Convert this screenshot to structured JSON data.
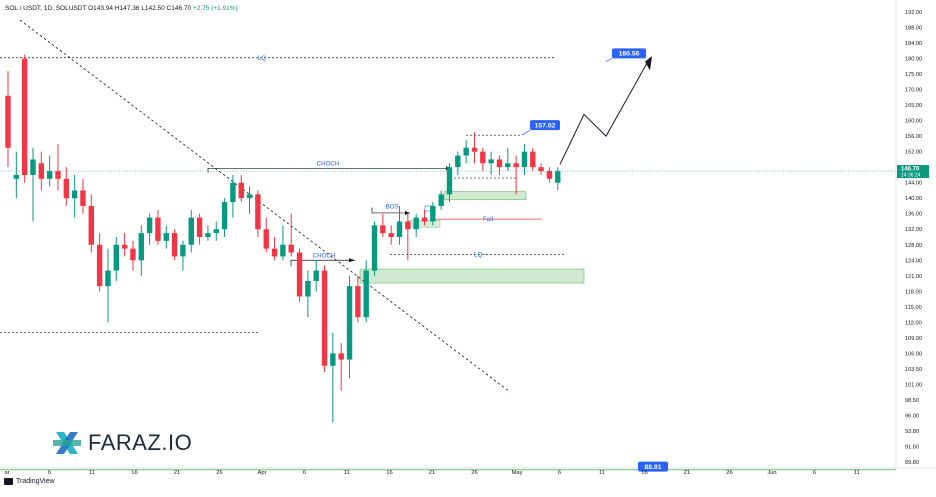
{
  "header": {
    "symbol": "SOL / USDT, 1D, SOLUSDT",
    "open": "O143.94",
    "high": "H147.36",
    "low": "L142.50",
    "close": "C146.70",
    "change": "+2.75 (+1.91%)"
  },
  "branding": {
    "logo_text": "FARAZ.IO",
    "tv_text": "TradingView"
  },
  "chart_data": {
    "type": "candlestick",
    "price_axis": {
      "ticks": [
        192.0,
        188.0,
        184.0,
        180.0,
        175.0,
        170.0,
        165.0,
        160.0,
        156.0,
        152.0,
        148.0,
        144.0,
        140.0,
        136.0,
        132.0,
        128.0,
        124.0,
        121.0,
        118.0,
        115.0,
        112.0,
        109.0,
        106.0,
        103.5,
        101.0,
        98.5,
        96.0,
        93.8,
        91.6,
        89.8
      ],
      "ylim": [
        88.5,
        194
      ]
    },
    "time_axis": {
      "labels": [
        "ar",
        "6",
        "11",
        "16",
        "21",
        "26",
        "Apr",
        "6",
        "11",
        "16",
        "21",
        "26",
        "May",
        "6",
        "11",
        "16",
        "21",
        "26",
        "Jun",
        "6",
        "11"
      ]
    },
    "current_price": {
      "label": "146.70",
      "countdown": "14:36:24",
      "color": "#089981"
    },
    "colors": {
      "up": "#089981",
      "down": "#f23645",
      "annotation": "#2962ff",
      "zone_fill": "#c8e6c9",
      "zone_stroke": "#4caf50"
    },
    "candles": [
      {
        "o": 168,
        "h": 176,
        "l": 148,
        "c": 153
      },
      {
        "o": 145,
        "h": 152,
        "l": 140,
        "c": 146
      },
      {
        "o": 180,
        "h": 181,
        "l": 144,
        "c": 146
      },
      {
        "o": 146,
        "h": 153,
        "l": 134,
        "c": 150
      },
      {
        "o": 149,
        "h": 152,
        "l": 142,
        "c": 145
      },
      {
        "o": 145,
        "h": 151,
        "l": 143,
        "c": 147
      },
      {
        "o": 147,
        "h": 154,
        "l": 142,
        "c": 145
      },
      {
        "o": 145,
        "h": 148,
        "l": 138,
        "c": 140
      },
      {
        "o": 140,
        "h": 146,
        "l": 135,
        "c": 142
      },
      {
        "o": 142,
        "h": 145,
        "l": 136,
        "c": 138
      },
      {
        "o": 138,
        "h": 141,
        "l": 126,
        "c": 128
      },
      {
        "o": 128,
        "h": 131,
        "l": 118,
        "c": 119
      },
      {
        "o": 119,
        "h": 127,
        "l": 112,
        "c": 122
      },
      {
        "o": 122,
        "h": 130,
        "l": 120,
        "c": 128
      },
      {
        "o": 128,
        "h": 131,
        "l": 125,
        "c": 127
      },
      {
        "o": 127,
        "h": 129,
        "l": 122,
        "c": 124
      },
      {
        "o": 124,
        "h": 133,
        "l": 121,
        "c": 131
      },
      {
        "o": 131,
        "h": 136,
        "l": 128,
        "c": 135
      },
      {
        "o": 135,
        "h": 137,
        "l": 128,
        "c": 129
      },
      {
        "o": 129,
        "h": 133,
        "l": 127,
        "c": 131
      },
      {
        "o": 131,
        "h": 132,
        "l": 124,
        "c": 125
      },
      {
        "o": 125,
        "h": 129,
        "l": 122,
        "c": 128
      },
      {
        "o": 128,
        "h": 137,
        "l": 126,
        "c": 135
      },
      {
        "o": 135,
        "h": 136,
        "l": 128,
        "c": 130
      },
      {
        "o": 130,
        "h": 133,
        "l": 129,
        "c": 131
      },
      {
        "o": 131,
        "h": 134,
        "l": 129,
        "c": 132
      },
      {
        "o": 132,
        "h": 140,
        "l": 130,
        "c": 139
      },
      {
        "o": 139,
        "h": 146,
        "l": 135,
        "c": 144
      },
      {
        "o": 144,
        "h": 146,
        "l": 139,
        "c": 140
      },
      {
        "o": 140,
        "h": 143,
        "l": 136,
        "c": 141
      },
      {
        "o": 141,
        "h": 142,
        "l": 130,
        "c": 132
      },
      {
        "o": 132,
        "h": 135,
        "l": 126,
        "c": 127
      },
      {
        "o": 127,
        "h": 130,
        "l": 124,
        "c": 125
      },
      {
        "o": 125,
        "h": 133,
        "l": 124,
        "c": 128
      },
      {
        "o": 128,
        "h": 136,
        "l": 125,
        "c": 126
      },
      {
        "o": 126,
        "h": 127,
        "l": 116,
        "c": 117
      },
      {
        "o": 117,
        "h": 122,
        "l": 113,
        "c": 120
      },
      {
        "o": 120,
        "h": 124,
        "l": 118,
        "c": 122
      },
      {
        "o": 122,
        "h": 123,
        "l": 103,
        "c": 104
      },
      {
        "o": 104,
        "h": 110,
        "l": 95,
        "c": 106
      },
      {
        "o": 106,
        "h": 108,
        "l": 100,
        "c": 105
      },
      {
        "o": 105,
        "h": 121,
        "l": 102,
        "c": 119
      },
      {
        "o": 119,
        "h": 121,
        "l": 112,
        "c": 113
      },
      {
        "o": 113,
        "h": 124,
        "l": 112,
        "c": 122
      },
      {
        "o": 122,
        "h": 134,
        "l": 121,
        "c": 133
      },
      {
        "o": 133,
        "h": 136,
        "l": 130,
        "c": 131
      },
      {
        "o": 131,
        "h": 133,
        "l": 128,
        "c": 130
      },
      {
        "o": 130,
        "h": 138,
        "l": 128,
        "c": 134
      },
      {
        "o": 134,
        "h": 136,
        "l": 124,
        "c": 132
      },
      {
        "o": 132,
        "h": 136,
        "l": 130,
        "c": 135
      },
      {
        "o": 135,
        "h": 137,
        "l": 133,
        "c": 134
      },
      {
        "o": 134,
        "h": 139,
        "l": 133,
        "c": 138
      },
      {
        "o": 138,
        "h": 142,
        "l": 137,
        "c": 141
      },
      {
        "o": 141,
        "h": 149,
        "l": 139,
        "c": 148
      },
      {
        "o": 148,
        "h": 152,
        "l": 146,
        "c": 151
      },
      {
        "o": 151,
        "h": 155,
        "l": 149,
        "c": 153
      },
      {
        "o": 153,
        "h": 157,
        "l": 149,
        "c": 152
      },
      {
        "o": 152,
        "h": 153,
        "l": 147,
        "c": 149
      },
      {
        "o": 149,
        "h": 152,
        "l": 146,
        "c": 150
      },
      {
        "o": 150,
        "h": 151,
        "l": 146,
        "c": 148
      },
      {
        "o": 148,
        "h": 153,
        "l": 147,
        "c": 149
      },
      {
        "o": 149,
        "h": 151,
        "l": 141,
        "c": 148
      },
      {
        "o": 148,
        "h": 154,
        "l": 146,
        "c": 152
      },
      {
        "o": 152,
        "h": 153,
        "l": 147,
        "c": 148
      },
      {
        "o": 148,
        "h": 149,
        "l": 146,
        "c": 147
      },
      {
        "o": 147,
        "h": 148,
        "l": 144,
        "c": 145
      },
      {
        "o": 144,
        "h": 148,
        "l": 142,
        "c": 147
      }
    ],
    "annotations": {
      "lq_top": {
        "label": "LQ",
        "price": 180.2
      },
      "lq_mid": {
        "label": "LQ -",
        "price": 125.5
      },
      "left_dashed_price": 110.0,
      "choch_1": {
        "label": "CHOCH",
        "price": 147.7
      },
      "choch_2": {
        "label": "CHOCH",
        "price": 124.0
      },
      "bos": {
        "label": "BOS"
      },
      "fail": {
        "label": "Fail",
        "price": 134.6
      },
      "target_157": {
        "label": "157.02",
        "price": 157.02
      },
      "target_180": {
        "label": "180.56",
        "price": 180.56
      },
      "bottom_line": {
        "label": "88.91",
        "price": 88.91
      }
    }
  }
}
